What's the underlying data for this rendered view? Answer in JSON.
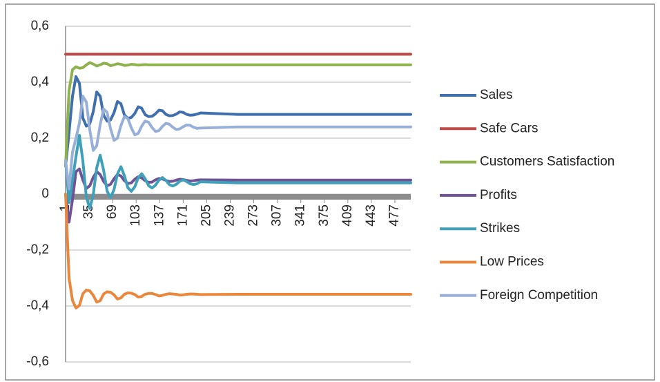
{
  "chart_data": {
    "type": "line",
    "x": [
      1,
      6,
      11,
      16,
      21,
      26,
      31,
      36,
      41,
      46,
      51,
      56,
      61,
      66,
      71,
      76,
      81,
      86,
      91,
      96,
      101,
      106,
      111,
      116,
      121,
      126,
      131,
      136,
      141,
      146,
      151,
      156,
      161,
      166,
      171,
      176,
      181,
      186,
      191,
      196,
      250,
      300,
      400,
      500
    ],
    "xlim": [
      1,
      500
    ],
    "xticks": [
      1,
      35,
      69,
      103,
      137,
      171,
      205,
      239,
      273,
      307,
      341,
      375,
      409,
      443,
      477
    ],
    "ylim": [
      -0.6,
      0.6
    ],
    "yticks": [
      {
        "value": -0.6,
        "label": "-0,6"
      },
      {
        "value": -0.4,
        "label": "-0,4"
      },
      {
        "value": -0.2,
        "label": "-0,2"
      },
      0,
      {
        "value": 0.2,
        "label": "0,2"
      },
      {
        "value": 0.4,
        "label": "0,4"
      },
      {
        "value": 0.6,
        "label": "0,6"
      }
    ],
    "grid": true,
    "legend": "right",
    "series": [
      {
        "name": "Sales",
        "color": "#3f6fad",
        "values": [
          0.1,
          0.22,
          0.35,
          0.42,
          0.396,
          0.272,
          0.243,
          0.251,
          0.295,
          0.365,
          0.35,
          0.282,
          0.261,
          0.265,
          0.291,
          0.331,
          0.323,
          0.283,
          0.271,
          0.274,
          0.288,
          0.312,
          0.307,
          0.284,
          0.277,
          0.278,
          0.287,
          0.3,
          0.298,
          0.285,
          0.28,
          0.281,
          0.286,
          0.294,
          0.292,
          0.285,
          0.282,
          0.283,
          0.286,
          0.29,
          0.285,
          0.285,
          0.285,
          0.285
        ]
      },
      {
        "name": "Safe Cars",
        "color": "#be4b48",
        "values": [
          0.5,
          0.5,
          0.5,
          0.5,
          0.5,
          0.5,
          0.5,
          0.5,
          0.5,
          0.5,
          0.5,
          0.5,
          0.5,
          0.5,
          0.5,
          0.5,
          0.5,
          0.5,
          0.5,
          0.5,
          0.5,
          0.5,
          0.5,
          0.5,
          0.5,
          0.5,
          0.5,
          0.5,
          0.5,
          0.5,
          0.5,
          0.5,
          0.5,
          0.5,
          0.5,
          0.5,
          0.5,
          0.5,
          0.5,
          0.5,
          0.5,
          0.5,
          0.5,
          0.5
        ]
      },
      {
        "name": "Customers Satisfaction",
        "color": "#8fb24f",
        "values": [
          0.1,
          0.37,
          0.445,
          0.455,
          0.45,
          0.452,
          0.462,
          0.47,
          0.465,
          0.458,
          0.462,
          0.468,
          0.466,
          0.459,
          0.462,
          0.466,
          0.464,
          0.46,
          0.461,
          0.464,
          0.463,
          0.461,
          0.462,
          0.463,
          0.462,
          0.462,
          0.462,
          0.462,
          0.462,
          0.462,
          0.462,
          0.462,
          0.462,
          0.462,
          0.462,
          0.462,
          0.462,
          0.462,
          0.462,
          0.462,
          0.462,
          0.462,
          0.462,
          0.462
        ]
      },
      {
        "name": "Profits",
        "color": "#6e5496",
        "values": [
          0,
          -0.1,
          -0.02,
          0.08,
          0.09,
          0.05,
          0.02,
          0.03,
          0.06,
          0.08,
          0.07,
          0.045,
          0.03,
          0.035,
          0.055,
          0.07,
          0.065,
          0.048,
          0.038,
          0.04,
          0.053,
          0.062,
          0.058,
          0.048,
          0.042,
          0.043,
          0.051,
          0.056,
          0.054,
          0.049,
          0.045,
          0.046,
          0.05,
          0.053,
          0.052,
          0.049,
          0.047,
          0.048,
          0.05,
          0.051,
          0.05,
          0.05,
          0.05,
          0.05
        ]
      },
      {
        "name": "Strikes",
        "color": "#3fa0b9",
        "values": [
          0.12,
          -0.03,
          0.05,
          0.134,
          0.21,
          0.118,
          -0.01,
          -0.051,
          -0.002,
          0.094,
          0.139,
          0.085,
          0.011,
          -0.013,
          0.016,
          0.072,
          0.098,
          0.066,
          0.023,
          0.01,
          0.026,
          0.058,
          0.073,
          0.055,
          0.03,
          0.022,
          0.032,
          0.05,
          0.059,
          0.049,
          0.034,
          0.029,
          0.035,
          0.046,
          0.051,
          0.045,
          0.037,
          0.034,
          0.037,
          0.044,
          0.04,
          0.04,
          0.04,
          0.04
        ]
      },
      {
        "name": "Low Prices",
        "color": "#e9873d",
        "values": [
          0,
          -0.3,
          -0.38,
          -0.407,
          -0.398,
          -0.356,
          -0.343,
          -0.346,
          -0.362,
          -0.386,
          -0.381,
          -0.357,
          -0.349,
          -0.351,
          -0.36,
          -0.375,
          -0.371,
          -0.358,
          -0.353,
          -0.354,
          -0.359,
          -0.368,
          -0.366,
          -0.358,
          -0.355,
          -0.355,
          -0.359,
          -0.364,
          -0.362,
          -0.358,
          -0.356,
          -0.357,
          -0.358,
          -0.361,
          -0.36,
          -0.358,
          -0.357,
          -0.357,
          -0.358,
          -0.359,
          -0.358,
          -0.358,
          -0.358,
          -0.358
        ]
      },
      {
        "name": "Foreign Competition",
        "color": "#98b0d8",
        "values": [
          0.12,
          0.02,
          0.15,
          0.2,
          0.254,
          0.35,
          0.329,
          0.229,
          0.156,
          0.173,
          0.248,
          0.304,
          0.292,
          0.234,
          0.192,
          0.2,
          0.245,
          0.277,
          0.27,
          0.237,
          0.212,
          0.217,
          0.243,
          0.261,
          0.257,
          0.238,
          0.224,
          0.227,
          0.242,
          0.253,
          0.25,
          0.239,
          0.231,
          0.233,
          0.241,
          0.247,
          0.246,
          0.239,
          0.235,
          0.236,
          0.24,
          0.24,
          0.24,
          0.24
        ]
      }
    ]
  }
}
